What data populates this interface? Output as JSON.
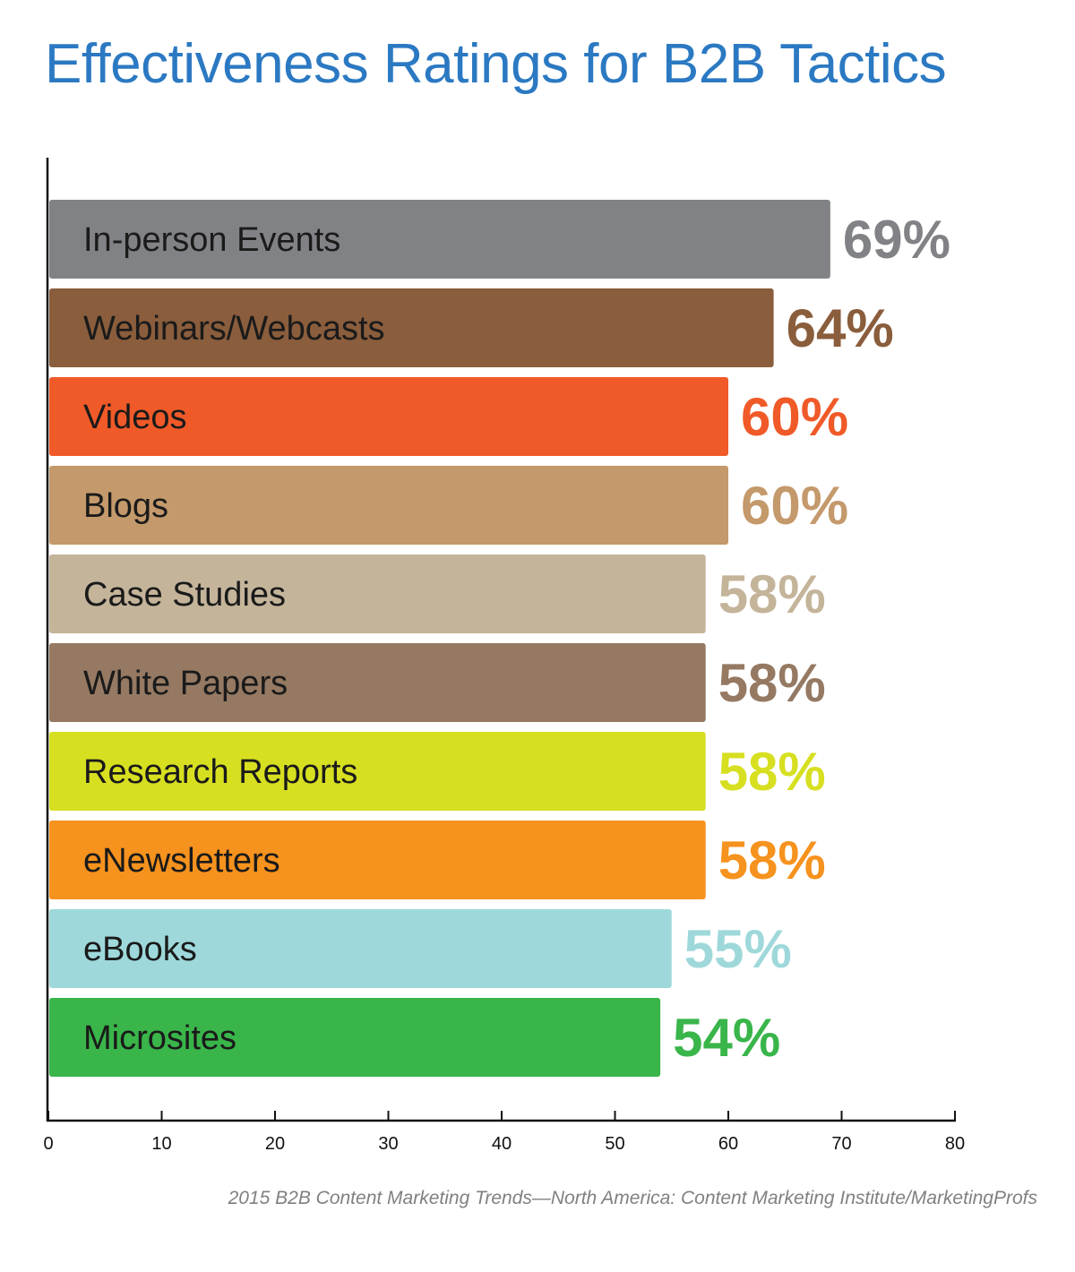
{
  "chart_data": {
    "type": "bar",
    "orientation": "horizontal",
    "title": "Effectiveness Ratings for B2B Tactics",
    "categories": [
      "In-person Events",
      "Webinars/Webcasts",
      "Videos",
      "Blogs",
      "Case Studies",
      "White Papers",
      "Research Reports",
      "eNewsletters",
      "eBooks",
      "Microsites"
    ],
    "values": [
      69,
      64,
      60,
      60,
      58,
      58,
      58,
      58,
      55,
      54
    ],
    "value_labels": [
      "69%",
      "64%",
      "60%",
      "60%",
      "58%",
      "58%",
      "58%",
      "58%",
      "55%",
      "54%"
    ],
    "colors": [
      "#818285",
      "#8a5d3c",
      "#f05a28",
      "#c4996b",
      "#c4b49a",
      "#957962",
      "#d7df21",
      "#f6921e",
      "#9ed8da",
      "#39b54a"
    ],
    "xlim": [
      0,
      80
    ],
    "xticks": [
      0,
      10,
      20,
      30,
      40,
      50,
      60,
      70,
      80
    ],
    "xtick_labels": [
      "0",
      "10",
      "20",
      "30",
      "40",
      "50",
      "60",
      "70",
      "80"
    ],
    "grid": false,
    "legend": "none"
  },
  "source": "2015 B2B Content Marketing Trends—North America: Content Marketing Institute/MarketingProfs",
  "title_color": "#2b79c2"
}
